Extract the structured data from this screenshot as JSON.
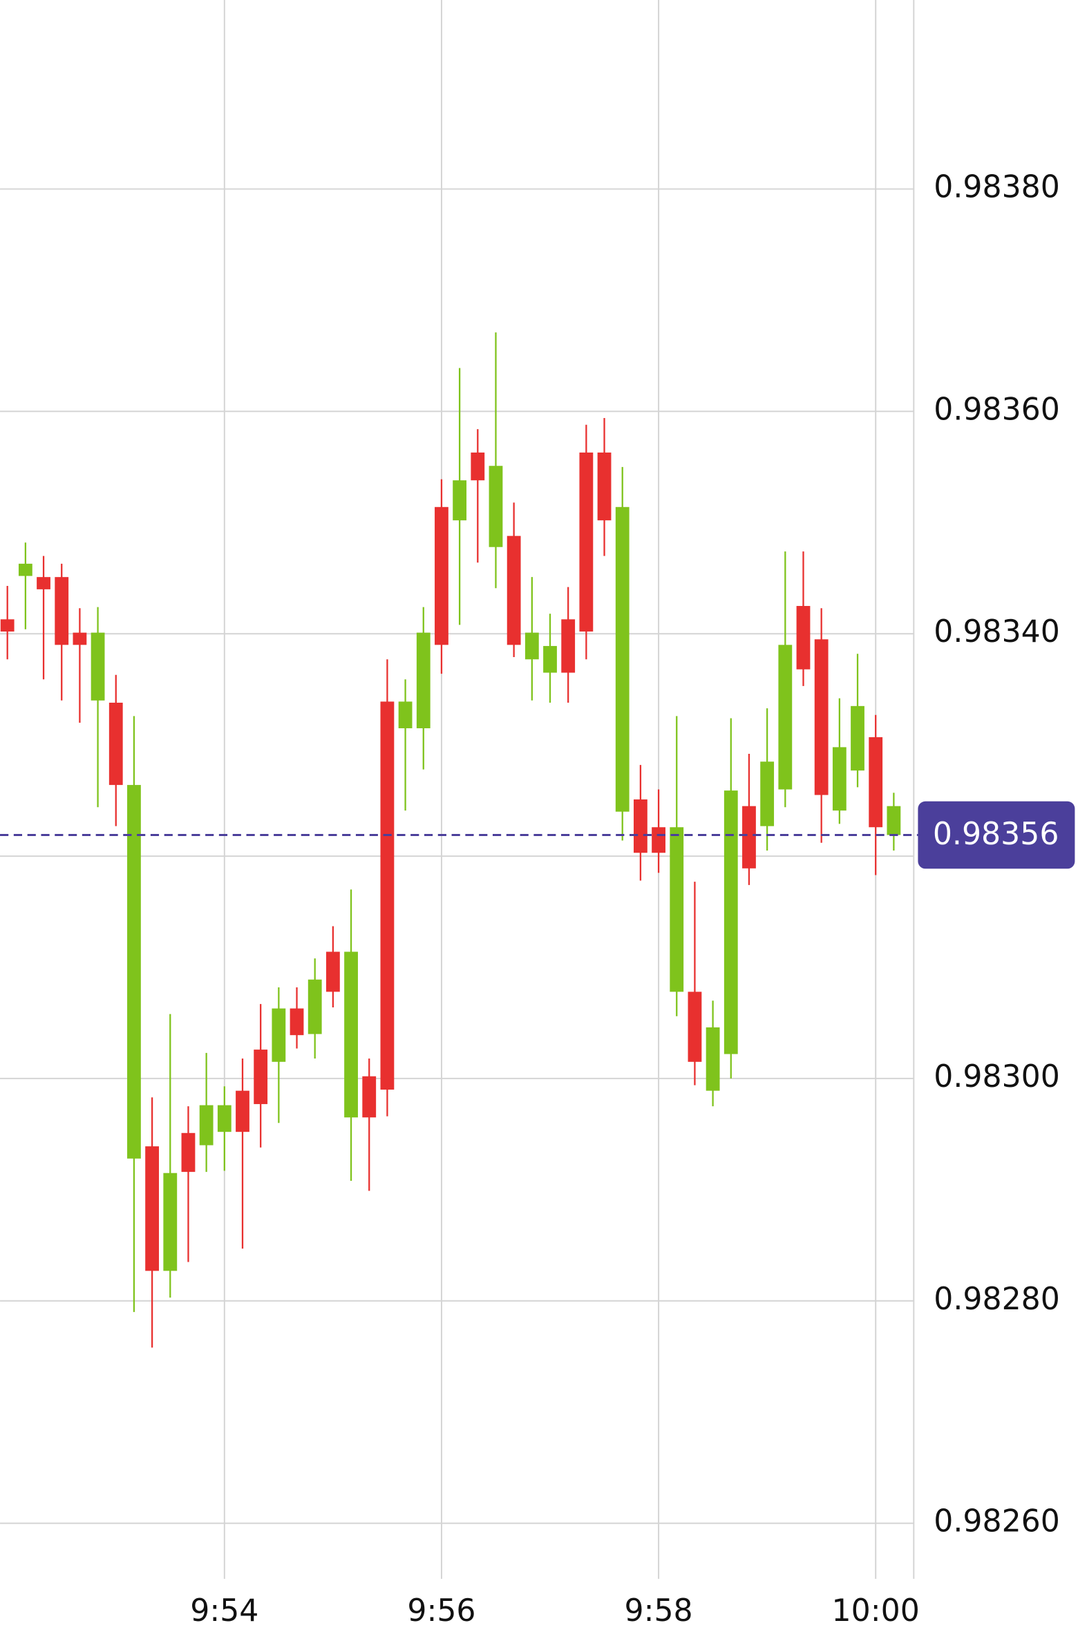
{
  "chart_data": {
    "type": "candlestick",
    "categories": [
      null,
      null,
      null,
      null,
      null,
      null,
      null,
      null,
      null,
      null,
      null,
      null,
      "9:54",
      null,
      null,
      null,
      null,
      null,
      null,
      null,
      null,
      null,
      null,
      null,
      "9:56",
      null,
      null,
      null,
      null,
      null,
      null,
      null,
      null,
      null,
      null,
      null,
      "9:58",
      null,
      null,
      null,
      null,
      null,
      null,
      null,
      null,
      null,
      null,
      null,
      "10:00",
      null
    ],
    "open": [
      0.983413,
      0.983452,
      0.983451,
      0.983451,
      0.983401,
      0.98334,
      0.983338,
      0.982928,
      0.982939,
      0.982827,
      0.982951,
      0.98294,
      0.982952,
      0.982989,
      0.983026,
      0.983015,
      0.983063,
      0.98304,
      0.983114,
      0.982965,
      0.983002,
      0.983339,
      0.983315,
      0.983315,
      0.983514,
      0.983502,
      0.983563,
      0.983478,
      0.983488,
      0.983377,
      0.983365,
      0.983413,
      0.983563,
      0.983563,
      0.98324,
      0.983251,
      0.983226,
      0.983078,
      0.983078,
      0.982989,
      0.983022,
      0.983245,
      0.983227,
      0.98326,
      0.983425,
      0.983395,
      0.983241,
      0.983277,
      0.983307,
      0.983219
    ],
    "high": [
      0.983443,
      0.983482,
      0.98347,
      0.983463,
      0.983423,
      0.983424,
      0.983363,
      0.983326,
      0.982983,
      0.983058,
      0.982975,
      0.983023,
      0.982993,
      0.983018,
      0.983067,
      0.983082,
      0.983082,
      0.983108,
      0.983137,
      0.98317,
      0.983018,
      0.983377,
      0.983359,
      0.983424,
      0.983539,
      0.983639,
      0.983584,
      0.983671,
      0.983518,
      0.983451,
      0.983418,
      0.983442,
      0.983588,
      0.983594,
      0.98355,
      0.983282,
      0.98326,
      0.983326,
      0.983177,
      0.98307,
      0.983324,
      0.983292,
      0.983333,
      0.983474,
      0.983474,
      0.983423,
      0.983342,
      0.983382,
      0.983327,
      0.983257
    ],
    "low": [
      0.983377,
      0.983404,
      0.983359,
      0.98334,
      0.98332,
      0.983244,
      0.983227,
      0.98279,
      0.982758,
      0.982803,
      0.982835,
      0.982916,
      0.982917,
      0.982847,
      0.982938,
      0.98296,
      0.983027,
      0.983018,
      0.983064,
      0.982908,
      0.982899,
      0.982966,
      0.983241,
      0.983278,
      0.983364,
      0.983408,
      0.983464,
      0.983441,
      0.983379,
      0.98334,
      0.983338,
      0.983338,
      0.983377,
      0.98347,
      0.983214,
      0.983178,
      0.983185,
      0.983056,
      0.982994,
      0.982975,
      0.983,
      0.983174,
      0.983205,
      0.983244,
      0.983353,
      0.983212,
      0.983229,
      0.983262,
      0.983183,
      0.983205
    ],
    "close": [
      0.983402,
      0.983463,
      0.98344,
      0.98339,
      0.98339,
      0.983401,
      0.983264,
      0.983264,
      0.982827,
      0.982915,
      0.982916,
      0.982976,
      0.982976,
      0.982952,
      0.982977,
      0.983063,
      0.983039,
      0.983089,
      0.983078,
      0.983114,
      0.982965,
      0.98299,
      0.983339,
      0.983401,
      0.98339,
      0.983538,
      0.983538,
      0.983551,
      0.98339,
      0.983401,
      0.983389,
      0.983365,
      0.983402,
      0.983502,
      0.983514,
      0.983203,
      0.983203,
      0.983226,
      0.983015,
      0.983046,
      0.983259,
      0.983189,
      0.983285,
      0.98339,
      0.983368,
      0.983255,
      0.983298,
      0.983335,
      0.983226,
      0.983245
    ],
    "up_color": "#7fc31c",
    "down_color": "#e8302f",
    "ylim": [
      0.98255,
      0.98397
    ],
    "yticks": [
      {
        "value": 0.9838,
        "label": "0.98380"
      },
      {
        "value": 0.9836,
        "label": "0.98360"
      },
      {
        "value": 0.9834,
        "label": "0.98340"
      },
      {
        "value": 0.9832,
        "label": null
      },
      {
        "value": 0.983,
        "label": "0.98300"
      },
      {
        "value": 0.9828,
        "label": "0.98280"
      },
      {
        "value": 0.9826,
        "label": "0.98260"
      }
    ],
    "grid": true,
    "price_tag": "0.98356",
    "price_tag_color": "#4b3f9b"
  }
}
